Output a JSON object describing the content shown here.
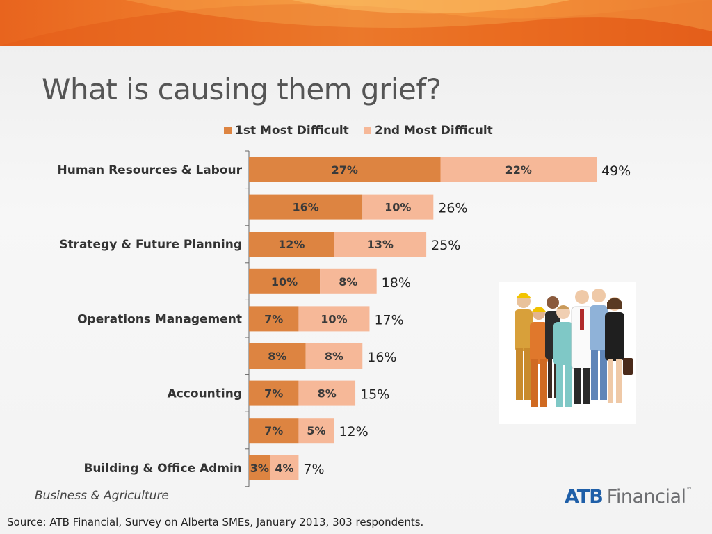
{
  "slide": {
    "title": "What is causing them grief?",
    "footer_left": "Business & Agriculture",
    "source": "Source:  ATB Financial, Survey on Alberta SMEs, January 2013, 303 respondents.",
    "logo": {
      "atb": "ATB",
      "financial": "Financial",
      "tm": "™"
    }
  },
  "colors": {
    "band": "#ec6f24",
    "series1": "#dd8441",
    "series2": "#f6b898",
    "title": "#555555",
    "logo_blue": "#1f5fa8"
  },
  "chart_data": {
    "type": "bar",
    "orientation": "horizontal",
    "stacked": true,
    "categories": [
      "Human Resources & Labour",
      "",
      "Strategy & Future Planning",
      "",
      "Operations Management",
      "",
      "Accounting",
      "",
      "Building & Office Admin"
    ],
    "series": [
      {
        "name": "1st Most Difficult",
        "values": [
          27,
          16,
          12,
          10,
          7,
          8,
          7,
          7,
          3
        ]
      },
      {
        "name": "2nd Most Difficult",
        "values": [
          22,
          10,
          13,
          8,
          10,
          8,
          8,
          5,
          4
        ]
      }
    ],
    "data_labels": [
      [
        "27%",
        "16%",
        "12%",
        "10%",
        "7%",
        "8%",
        "7%",
        "7%",
        "3%"
      ],
      [
        "22%",
        "10%",
        "13%",
        "8%",
        "10%",
        "8%",
        "8%",
        "5%",
        "4%"
      ]
    ],
    "totals": [
      49,
      26,
      25,
      18,
      17,
      16,
      15,
      12,
      7
    ],
    "total_labels": [
      "49%",
      "26%",
      "25%",
      "18%",
      "17%",
      "16%",
      "15%",
      "12%",
      "7%"
    ],
    "legend": {
      "position": "top"
    },
    "xlim": [
      0,
      49
    ],
    "grid": false
  }
}
